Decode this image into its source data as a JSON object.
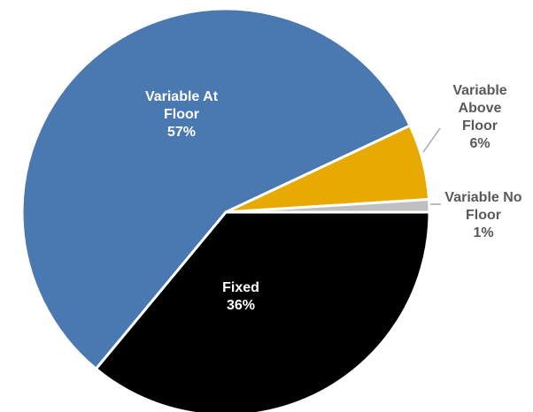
{
  "chart_data": {
    "type": "pie",
    "categories": [
      "Fixed",
      "Variable At Floor",
      "Variable Above Floor",
      "Variable No Floor"
    ],
    "values": [
      36,
      57,
      6,
      1
    ],
    "value_labels": [
      "36%",
      "57%",
      "6%",
      "1%"
    ],
    "colors": [
      "#000000",
      "#4a78b0",
      "#e8a900",
      "#bfbfbf"
    ]
  }
}
